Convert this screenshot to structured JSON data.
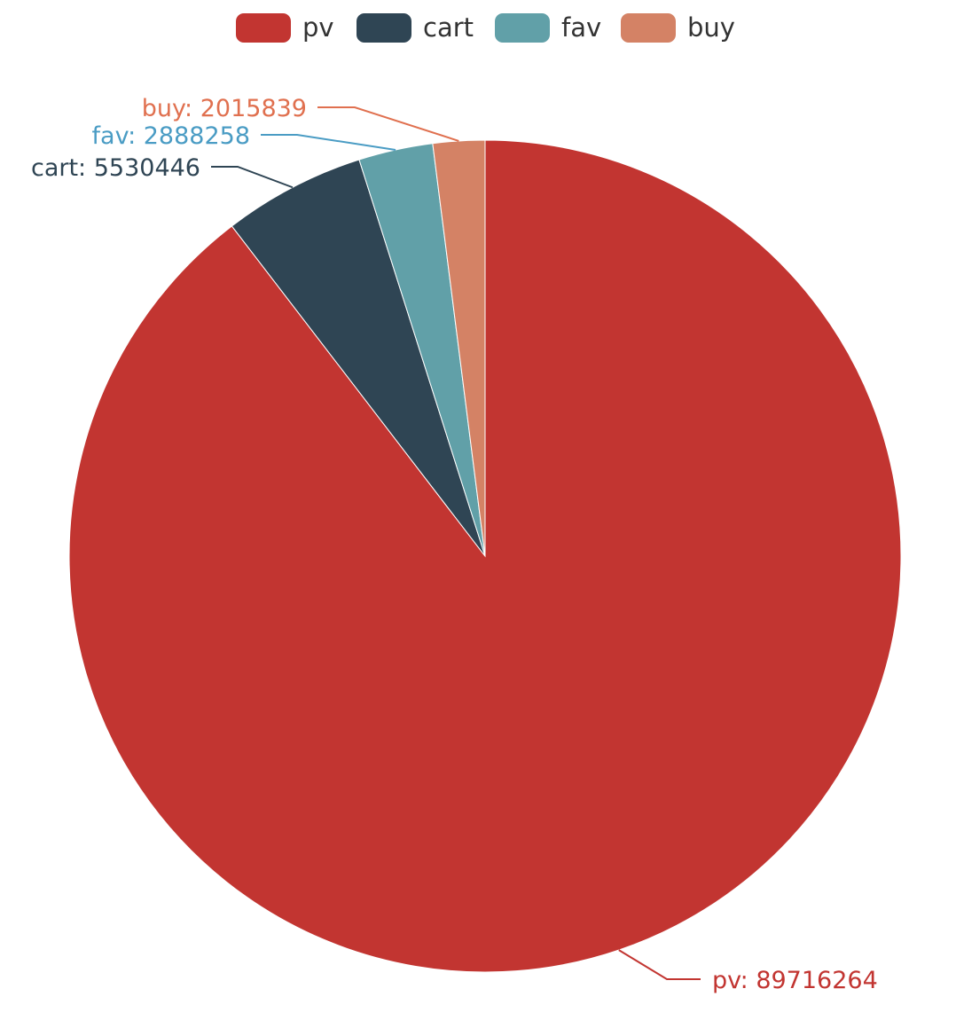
{
  "chart_data": {
    "type": "pie",
    "title": "",
    "legend_position": "top-center",
    "slices": [
      {
        "name": "pv",
        "value": 89716264,
        "label": "pv: 89716264",
        "color": "#c23531",
        "label_color": "#c23531"
      },
      {
        "name": "cart",
        "value": 5530446,
        "label": "cart: 5530446",
        "color": "#2f4554",
        "label_color": "#2f4554"
      },
      {
        "name": "fav",
        "value": 2888258,
        "label": "fav: 2888258",
        "color": "#61a0a8",
        "label_color": "#4a9cc4"
      },
      {
        "name": "buy",
        "value": 2015839,
        "label": "buy: 2015839",
        "color": "#d48265",
        "label_color": "#e0704f"
      }
    ]
  }
}
